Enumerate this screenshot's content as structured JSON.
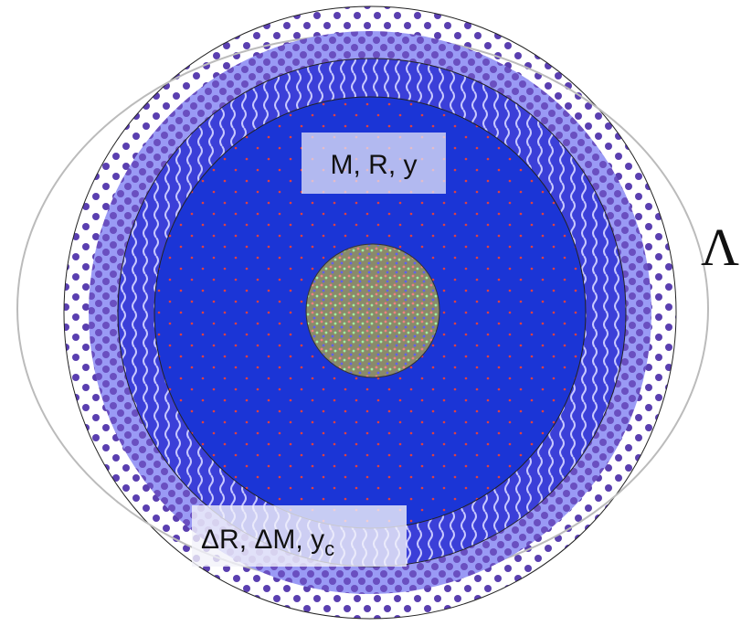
{
  "labels": {
    "inner": "M, R, y",
    "outer_main": "ΔR, ΔM, y",
    "outer_sub": "c",
    "lambda": "Λ"
  }
}
